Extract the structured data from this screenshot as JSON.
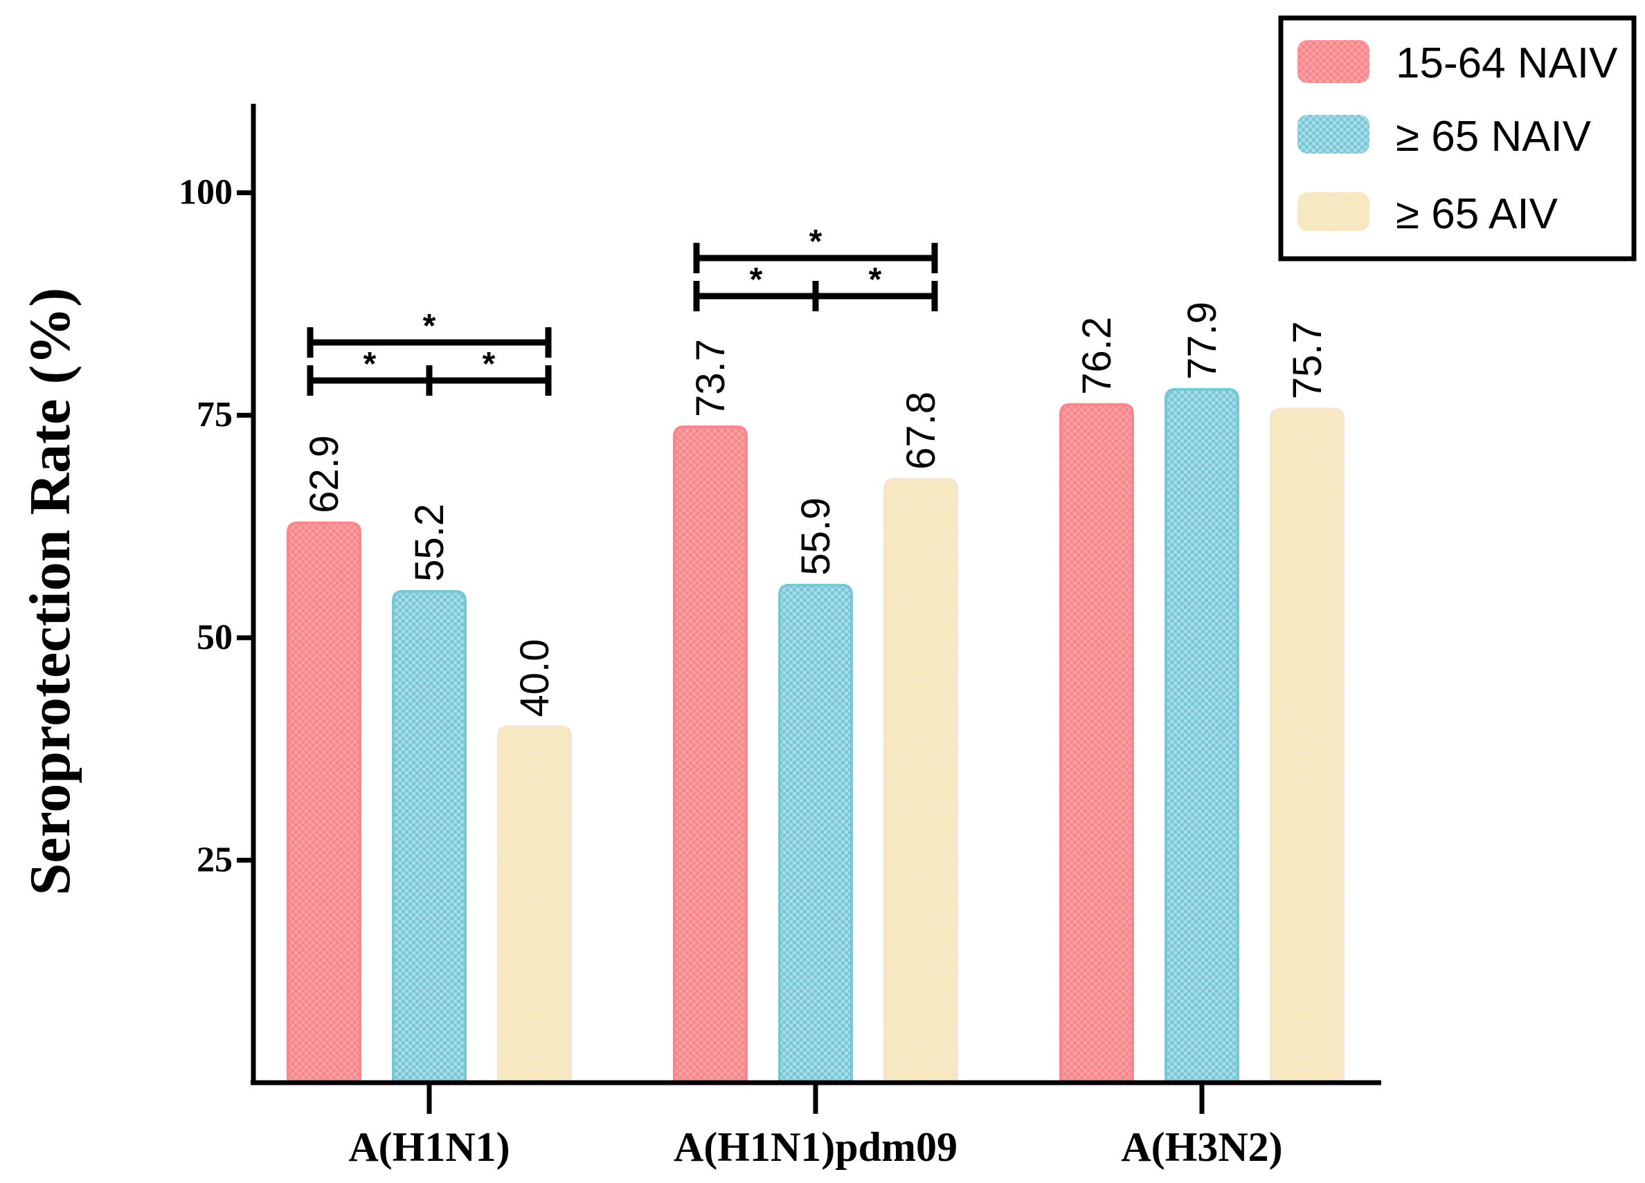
{
  "chart_data": {
    "type": "bar",
    "ylabel": "Seroprotection Rate (%)",
    "xlabel": "",
    "ylim": [
      0,
      110
    ],
    "yticks": [
      "25",
      "50",
      "75",
      "100"
    ],
    "categories": [
      "A(H1N1)",
      "A(H1N1)pdm09",
      "A(H3N2)"
    ],
    "series": [
      {
        "name": "15-64 NAIV",
        "color": "#F9858D",
        "values": [
          62.9,
          73.7,
          76.2
        ],
        "labels": [
          "62.9",
          "73.7",
          "76.2"
        ]
      },
      {
        "name": "≥ 65 NAIV",
        "color": "#78C6D6",
        "values": [
          55.2,
          55.9,
          77.9
        ],
        "labels": [
          "55.2",
          "55.9",
          "77.9"
        ]
      },
      {
        "name": "≥ 65 AIV",
        "color": "#F7E4D0",
        "values": [
          40.0,
          67.8,
          75.7
        ],
        "labels": [
          "40.0",
          "67.8",
          "75.7"
        ]
      }
    ],
    "legend_position": "top-right",
    "significance": [
      {
        "group": 0,
        "brackets": [
          {
            "from": 0,
            "to": 2,
            "level": 2,
            "mark": "*"
          },
          {
            "from": 0,
            "to": 1,
            "level": 1,
            "mark": "*"
          },
          {
            "from": 1,
            "to": 2,
            "level": 1,
            "mark": "*"
          }
        ]
      },
      {
        "group": 1,
        "brackets": [
          {
            "from": 0,
            "to": 2,
            "level": 2,
            "mark": "*"
          },
          {
            "from": 0,
            "to": 1,
            "level": 1,
            "mark": "*"
          },
          {
            "from": 1,
            "to": 2,
            "level": 1,
            "mark": "*"
          }
        ]
      }
    ]
  }
}
